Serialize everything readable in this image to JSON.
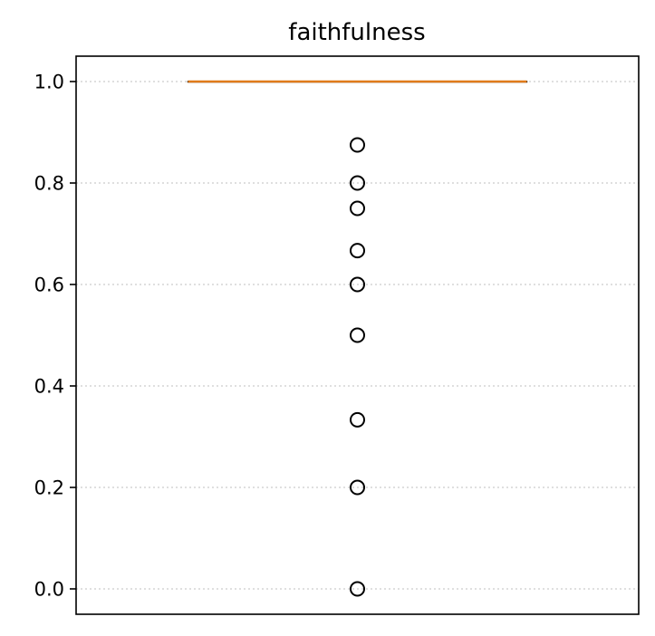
{
  "chart_data": {
    "type": "box",
    "title": "faithfulness",
    "xlabel": "",
    "ylabel": "",
    "ylim": [
      -0.05,
      1.05
    ],
    "yticks": [
      0.0,
      0.2,
      0.4,
      0.6,
      0.8,
      1.0
    ],
    "ytick_labels": [
      "0.0",
      "0.2",
      "0.4",
      "0.6",
      "0.8",
      "1.0"
    ],
    "grid": {
      "y": true,
      "x": false,
      "style": "dotted"
    },
    "box": {
      "q1": 1.0,
      "median": 1.0,
      "q3": 1.0,
      "whisker_low": 1.0,
      "whisker_high": 1.0
    },
    "outliers": [
      0.875,
      0.8,
      0.75,
      0.6667,
      0.6,
      0.5,
      0.3333,
      0.2,
      0.0
    ],
    "colors": {
      "median": "#e07b1a",
      "box": "#000000",
      "grid": "#cccccc",
      "outlier_edge": "#000000"
    }
  }
}
